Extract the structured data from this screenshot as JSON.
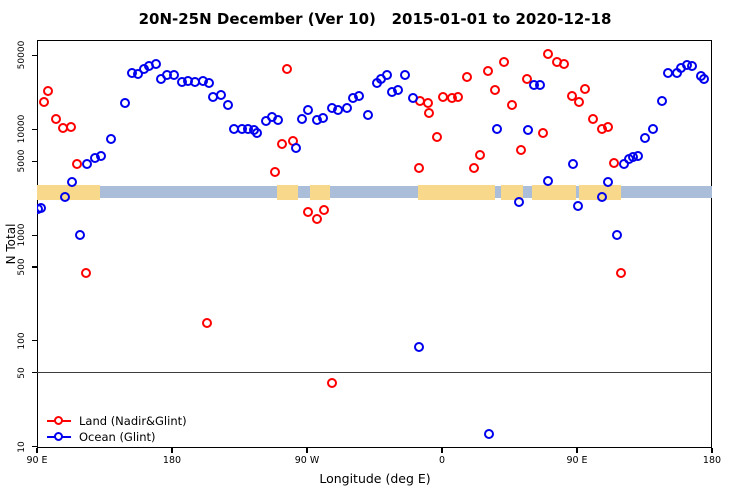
{
  "title": "20N-25N December (Ver 10)   2015-01-01 to 2020-12-18",
  "axes": {
    "x_label": "Longitude (deg E)",
    "y_label": "N Total"
  },
  "legend": {
    "items": [
      {
        "label": "Land (Nadir&Glint)",
        "color": "#FF0000"
      },
      {
        "label": "Ocean (Glint)",
        "color": "#0000EE"
      }
    ]
  },
  "chart_data": {
    "type": "scatter",
    "title": "20N-25N December (Ver 10)   2015-01-01 to 2020-12-18",
    "xlabel": "Longitude (deg E)",
    "ylabel": "N Total",
    "x_axis": {
      "unit": "longitude in degrees, wrapping eastward from 90E to 180 (450 deg span)",
      "range": [
        90,
        540
      ],
      "ticks": [
        90,
        180,
        270,
        360,
        450,
        540
      ],
      "tick_labels": [
        "90 E",
        "180",
        "90 W",
        "0",
        "90 E",
        "180"
      ]
    },
    "y_axis": {
      "scale": "log10",
      "range": [
        9.7,
        70000
      ],
      "ticks": [
        10,
        50,
        100,
        500,
        1000,
        5000,
        10000,
        50000
      ],
      "tick_labels": [
        "10",
        "50",
        "100",
        "500",
        "1000",
        "5000",
        "10000",
        "50000"
      ]
    },
    "grid": false,
    "reference_line_y": 50,
    "map_strip": {
      "description": "thin 20N-25N world-map band drawn across plot near N=2500",
      "ocean_color": "#AABDD9",
      "land_color": "#F8D88B",
      "ocean_n_range": [
        2250,
        2900
      ],
      "land_n_range": [
        2150,
        3000
      ],
      "land_segments_deg": [
        [
          90,
          132
        ],
        [
          250,
          264
        ],
        [
          272,
          285
        ],
        [
          344,
          395
        ],
        [
          399,
          414
        ],
        [
          420,
          449
        ],
        [
          451,
          479
        ]
      ]
    },
    "legend_position": "bottom-left",
    "series": [
      {
        "name": "Land (Nadir&Glint)",
        "color": "#FF0000",
        "points": [
          [
            98,
            23000
          ],
          [
            95,
            18000
          ],
          [
            103,
            12400
          ],
          [
            108,
            10200
          ],
          [
            113,
            10400
          ],
          [
            117,
            4600
          ],
          [
            123,
            430
          ],
          [
            204,
            145
          ],
          [
            249,
            3900
          ],
          [
            254,
            7200
          ],
          [
            257,
            37000
          ],
          [
            261,
            7700
          ],
          [
            271,
            1650
          ],
          [
            277,
            1390
          ],
          [
            282,
            1700
          ],
          [
            287,
            39
          ],
          [
            345,
            4300
          ],
          [
            346,
            18400
          ],
          [
            351,
            17600
          ],
          [
            352,
            14200
          ],
          [
            357,
            8400
          ],
          [
            361,
            20000
          ],
          [
            367,
            19600
          ],
          [
            371,
            20000
          ],
          [
            377,
            31000
          ],
          [
            382,
            4300
          ],
          [
            386,
            5600
          ],
          [
            391,
            35000
          ],
          [
            396,
            23300
          ],
          [
            402,
            43000
          ],
          [
            407,
            16800
          ],
          [
            413,
            6300
          ],
          [
            417,
            29600
          ],
          [
            428,
            9200
          ],
          [
            431,
            51000
          ],
          [
            437,
            43000
          ],
          [
            442,
            41000
          ],
          [
            447,
            20500
          ],
          [
            452,
            18000
          ],
          [
            456,
            23800
          ],
          [
            461,
            12400
          ],
          [
            467,
            10000
          ],
          [
            471,
            10400
          ],
          [
            475,
            4700
          ],
          [
            480,
            430
          ]
        ]
      },
      {
        "name": "Ocean (Glint)",
        "color": "#0000EE",
        "points": [
          [
            91,
            1760
          ],
          [
            93,
            1800
          ],
          [
            109,
            2280
          ],
          [
            114,
            3160
          ],
          [
            119,
            1000
          ],
          [
            124,
            4670
          ],
          [
            129,
            5300
          ],
          [
            133,
            5560
          ],
          [
            140,
            8050
          ],
          [
            149,
            17600
          ],
          [
            154,
            33700
          ],
          [
            158,
            33000
          ],
          [
            162,
            36800
          ],
          [
            165,
            39300
          ],
          [
            170,
            41000
          ],
          [
            173,
            29600
          ],
          [
            177,
            32300
          ],
          [
            182,
            32000
          ],
          [
            187,
            27700
          ],
          [
            191,
            28000
          ],
          [
            196,
            27700
          ],
          [
            201,
            28000
          ],
          [
            205,
            27000
          ],
          [
            208,
            20000
          ],
          [
            213,
            21000
          ],
          [
            218,
            16800
          ],
          [
            222,
            10000
          ],
          [
            227,
            10000
          ],
          [
            231,
            9900
          ],
          [
            235,
            9700
          ],
          [
            237,
            9200
          ],
          [
            243,
            11800
          ],
          [
            247,
            12900
          ],
          [
            251,
            12200
          ],
          [
            263,
            6600
          ],
          [
            267,
            12400
          ],
          [
            271,
            15100
          ],
          [
            277,
            12000
          ],
          [
            281,
            12700
          ],
          [
            287,
            15800
          ],
          [
            291,
            15100
          ],
          [
            297,
            15800
          ],
          [
            301,
            19600
          ],
          [
            305,
            20500
          ],
          [
            311,
            13500
          ],
          [
            317,
            27000
          ],
          [
            320,
            29600
          ],
          [
            324,
            32300
          ],
          [
            327,
            22300
          ],
          [
            331,
            23300
          ],
          [
            336,
            32300
          ],
          [
            341,
            19600
          ],
          [
            345,
            86
          ],
          [
            392,
            13
          ],
          [
            397,
            9900
          ],
          [
            412,
            2050
          ],
          [
            418,
            9700
          ],
          [
            422,
            26000
          ],
          [
            426,
            25700
          ],
          [
            431,
            3230
          ],
          [
            448,
            4670
          ],
          [
            451,
            1880
          ],
          [
            467,
            2280
          ],
          [
            471,
            3160
          ],
          [
            477,
            1000
          ],
          [
            482,
            4670
          ],
          [
            485,
            5200
          ],
          [
            488,
            5450
          ],
          [
            491,
            5560
          ],
          [
            496,
            8200
          ],
          [
            501,
            10000
          ],
          [
            507,
            18400
          ],
          [
            511,
            33700
          ],
          [
            517,
            33700
          ],
          [
            520,
            37600
          ],
          [
            524,
            40100
          ],
          [
            527,
            39300
          ],
          [
            533,
            31600
          ],
          [
            535,
            29600
          ]
        ]
      }
    ]
  }
}
